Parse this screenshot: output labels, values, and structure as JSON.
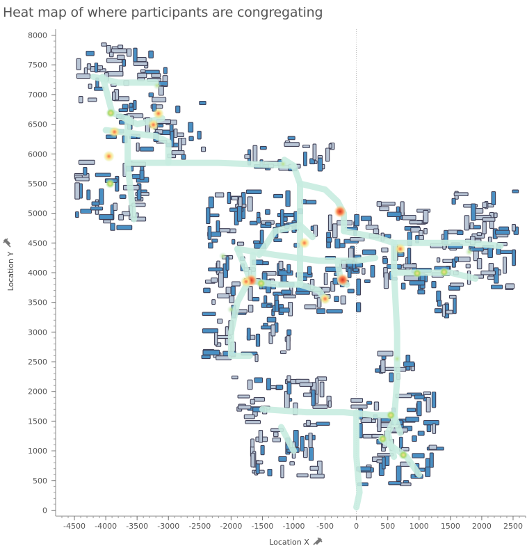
{
  "title": "Heat map of where participants are congregating",
  "chart_data": {
    "type": "heatmap",
    "title": "Heat map of where participants are congregating",
    "xlabel": "Location X",
    "ylabel": "Location Y",
    "xlim": [
      -4800,
      2700
    ],
    "ylim": [
      -100,
      8100
    ],
    "x_ticks": [
      -4500,
      -4000,
      -3500,
      -3000,
      -2500,
      -2000,
      -1500,
      -1000,
      -500,
      0,
      500,
      1000,
      1500,
      2000,
      2500
    ],
    "y_ticks": [
      0,
      500,
      1000,
      1500,
      2000,
      2500,
      3000,
      3500,
      4000,
      4500,
      5000,
      5500,
      6000,
      6500,
      7000,
      7500,
      8000
    ],
    "grid": false,
    "zero_reference_line": true,
    "colors": {
      "building_outline": "#3f3f55",
      "building_fill_light": "#b9c6d6",
      "building_fill_dark": "#4a90c4",
      "path_low": "#c8ece0",
      "path_mid": "#a6d96a",
      "path_high": "#fdae61",
      "path_peak": "#d7301f",
      "axis": "#888888",
      "reference_line": "#bbbbbb"
    },
    "main_paths": [
      [
        [
          -4200,
          7300
        ],
        [
          -3800,
          7200
        ],
        [
          -3200,
          7200
        ]
      ],
      [
        [
          -4050,
          7300
        ],
        [
          -3900,
          6700
        ],
        [
          -3700,
          6600
        ],
        [
          -3500,
          6500
        ],
        [
          -3100,
          6600
        ]
      ],
      [
        [
          -3650,
          6600
        ],
        [
          -3650,
          5800
        ],
        [
          -3550,
          4900
        ]
      ],
      [
        [
          -4000,
          6400
        ],
        [
          -3200,
          6300
        ],
        [
          -3000,
          6200
        ],
        [
          -3000,
          5850
        ]
      ],
      [
        [
          -3650,
          5850
        ],
        [
          -2200,
          5850
        ],
        [
          -1000,
          5800
        ],
        [
          -1150,
          5900
        ]
      ],
      [
        [
          -1000,
          5800
        ],
        [
          -900,
          5500
        ],
        [
          -900,
          3800
        ]
      ],
      [
        [
          -900,
          5500
        ],
        [
          -500,
          5400
        ],
        [
          -300,
          5200
        ],
        [
          -200,
          5000
        ],
        [
          -200,
          4700
        ]
      ],
      [
        [
          -1900,
          4400
        ],
        [
          -1300,
          4300
        ],
        [
          -600,
          4200
        ],
        [
          -300,
          4200
        ],
        [
          0,
          4200
        ],
        [
          300,
          4250
        ]
      ],
      [
        [
          -1900,
          4400
        ],
        [
          -1700,
          3900
        ],
        [
          -1900,
          3500
        ],
        [
          -2000,
          3000
        ],
        [
          -2000,
          2600
        ],
        [
          -1700,
          2600
        ]
      ],
      [
        [
          -1650,
          4300
        ],
        [
          -1650,
          3850
        ],
        [
          -1250,
          3800
        ],
        [
          -900,
          3800
        ],
        [
          -600,
          3700
        ],
        [
          -500,
          3550
        ]
      ],
      [
        [
          -300,
          4200
        ],
        [
          -250,
          3850
        ],
        [
          -150,
          3800
        ]
      ],
      [
        [
          -1550,
          4300
        ],
        [
          -1300,
          4700
        ],
        [
          -900,
          4800
        ],
        [
          -700,
          4600
        ]
      ],
      [
        [
          -200,
          4700
        ],
        [
          300,
          4600
        ],
        [
          600,
          4500
        ],
        [
          1200,
          4500
        ],
        [
          1800,
          4500
        ],
        [
          2300,
          4450
        ]
      ],
      [
        [
          600,
          4500
        ],
        [
          600,
          4000
        ],
        [
          1000,
          4000
        ],
        [
          1500,
          4000
        ],
        [
          1900,
          3900
        ]
      ],
      [
        [
          600,
          4000
        ],
        [
          650,
          3000
        ],
        [
          650,
          2200
        ],
        [
          600,
          1500
        ],
        [
          500,
          1300
        ],
        [
          600,
          900
        ]
      ],
      [
        [
          -1500,
          1700
        ],
        [
          -800,
          1650
        ],
        [
          -200,
          1650
        ],
        [
          300,
          1600
        ],
        [
          600,
          1600
        ],
        [
          700,
          1300
        ]
      ],
      [
        [
          0,
          1650
        ],
        [
          0,
          900
        ],
        [
          50,
          300
        ],
        [
          0,
          50
        ]
      ],
      [
        [
          -1200,
          1400
        ],
        [
          -1000,
          1000
        ]
      ],
      [
        [
          400,
          1200
        ],
        [
          800,
          900
        ],
        [
          1000,
          600
        ]
      ]
    ],
    "hotspots": [
      {
        "x": -3860,
        "y": 6370,
        "level": "high"
      },
      {
        "x": -3240,
        "y": 6490,
        "level": "high"
      },
      {
        "x": -3160,
        "y": 6680,
        "level": "high"
      },
      {
        "x": -3920,
        "y": 6690,
        "level": "mid"
      },
      {
        "x": -3950,
        "y": 5960,
        "level": "high"
      },
      {
        "x": -3930,
        "y": 5500,
        "level": "mid"
      },
      {
        "x": -3180,
        "y": 7150,
        "level": "low"
      },
      {
        "x": -1170,
        "y": 5830,
        "level": "low"
      },
      {
        "x": -260,
        "y": 5030,
        "level": "peak"
      },
      {
        "x": -830,
        "y": 4500,
        "level": "high"
      },
      {
        "x": -1680,
        "y": 3870,
        "level": "peak"
      },
      {
        "x": -1760,
        "y": 3850,
        "level": "high"
      },
      {
        "x": -1520,
        "y": 3820,
        "level": "mid"
      },
      {
        "x": -220,
        "y": 3880,
        "level": "peak"
      },
      {
        "x": -500,
        "y": 3560,
        "level": "high"
      },
      {
        "x": -2000,
        "y": 3380,
        "level": "low"
      },
      {
        "x": 700,
        "y": 4400,
        "level": "high"
      },
      {
        "x": 970,
        "y": 3990,
        "level": "mid"
      },
      {
        "x": 1400,
        "y": 4010,
        "level": "mid"
      },
      {
        "x": 1800,
        "y": 4350,
        "level": "low"
      },
      {
        "x": 550,
        "y": 1600,
        "level": "mid"
      },
      {
        "x": 420,
        "y": 1200,
        "level": "mid"
      },
      {
        "x": 750,
        "y": 930,
        "level": "mid"
      },
      {
        "x": 650,
        "y": 2550,
        "level": "low"
      },
      {
        "x": -2130,
        "y": 4280,
        "level": "low"
      }
    ],
    "districts": [
      {
        "x0": -4500,
        "x1": -3000,
        "y0": 6800,
        "y1": 7900,
        "density": 0.25
      },
      {
        "x0": -4000,
        "x1": -2400,
        "y0": 5900,
        "y1": 6900,
        "density": 0.5
      },
      {
        "x0": -4500,
        "x1": -3300,
        "y0": 4700,
        "y1": 5900,
        "density": 0.5
      },
      {
        "x0": -1800,
        "x1": -300,
        "y0": 5700,
        "y1": 6300,
        "density": 0.35
      },
      {
        "x0": -2400,
        "x1": -500,
        "y0": 4400,
        "y1": 5400,
        "density": 0.8
      },
      {
        "x0": -500,
        "x1": 400,
        "y0": 3800,
        "y1": 5000,
        "density": 0.55
      },
      {
        "x0": -2500,
        "x1": -1000,
        "y0": 2500,
        "y1": 4300,
        "density": 0.5
      },
      {
        "x0": -1300,
        "x1": 100,
        "y0": 3300,
        "y1": 4300,
        "density": 0.6
      },
      {
        "x0": 300,
        "x1": 2600,
        "y0": 3600,
        "y1": 4800,
        "density": 0.55
      },
      {
        "x0": 1500,
        "x1": 2600,
        "y0": 4600,
        "y1": 5400,
        "density": 0.3
      },
      {
        "x0": 300,
        "x1": 1400,
        "y0": 4800,
        "y1": 5200,
        "density": 0.3
      },
      {
        "x0": 1100,
        "x1": 1700,
        "y0": 3200,
        "y1": 3700,
        "density": 0.3
      },
      {
        "x0": -2000,
        "x1": -400,
        "y0": 1400,
        "y1": 2300,
        "density": 0.35
      },
      {
        "x0": -1700,
        "x1": -500,
        "y0": 500,
        "y1": 1400,
        "density": 0.45
      },
      {
        "x0": -100,
        "x1": 1400,
        "y0": 400,
        "y1": 2000,
        "density": 0.6
      },
      {
        "x0": 300,
        "x1": 1000,
        "y0": 2100,
        "y1": 2700,
        "density": 0.45
      }
    ]
  }
}
